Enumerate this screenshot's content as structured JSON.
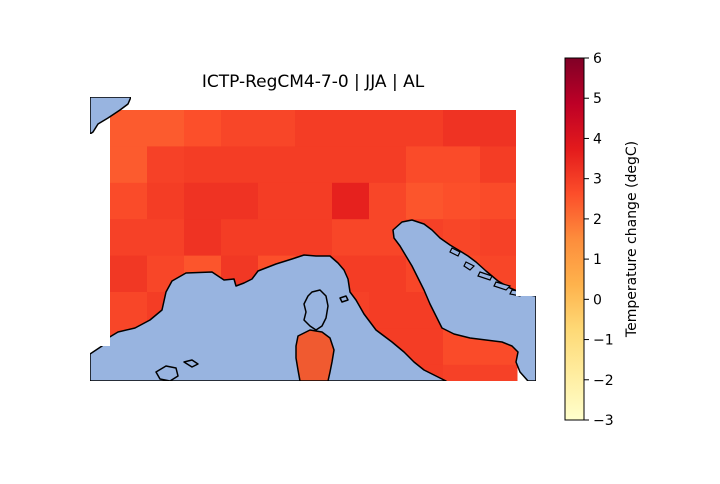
{
  "title": "ICTP-RegCM4-7-0 | JJA | AL",
  "colorbar": {
    "label": "Temperature change (degC)",
    "min": -3,
    "max": 6,
    "ticks": [
      "6",
      "5",
      "4",
      "3",
      "2",
      "1",
      "0",
      "−1",
      "−2",
      "−3"
    ],
    "colormap": [
      "#ffffcc",
      "#ffeda0",
      "#fed976",
      "#feb24c",
      "#fd8d3c",
      "#fc4e2a",
      "#e31a1c",
      "#bd0026",
      "#800026"
    ]
  },
  "colors": {
    "sea": "#98b4e0",
    "coast": "#000000"
  },
  "grid": {
    "rows": 8,
    "cols": 11,
    "values": [
      [
        2.4,
        2.4,
        2.6,
        2.8,
        2.8,
        3.0,
        3.0,
        3.0,
        3.0,
        3.2,
        3.2
      ],
      [
        2.4,
        2.9,
        3.0,
        3.0,
        3.0,
        3.0,
        3.0,
        3.0,
        2.7,
        2.7,
        3.0
      ],
      [
        2.7,
        3.0,
        3.2,
        3.2,
        3.0,
        3.0,
        3.6,
        2.8,
        2.5,
        2.6,
        2.7
      ],
      [
        2.9,
        2.9,
        3.2,
        3.0,
        3.0,
        3.0,
        2.8,
        2.8,
        2.9,
        2.8,
        2.9
      ],
      [
        3.1,
        2.8,
        2.5,
        3.1,
        2.6,
        2.9,
        3.0,
        3.0,
        2.8,
        2.7,
        2.8
      ],
      [
        2.8,
        3.0,
        2.9,
        2.9,
        2.9,
        2.9,
        2.9,
        3.0,
        3.0,
        2.9,
        2.9
      ],
      [
        2.8,
        2.9,
        2.8,
        2.8,
        2.8,
        2.8,
        2.9,
        3.0,
        3.0,
        2.7,
        2.7
      ],
      [
        2.9,
        2.9,
        2.9,
        2.9,
        2.9,
        2.9,
        2.8,
        3.0,
        3.0,
        2.9,
        2.9
      ]
    ]
  }
}
